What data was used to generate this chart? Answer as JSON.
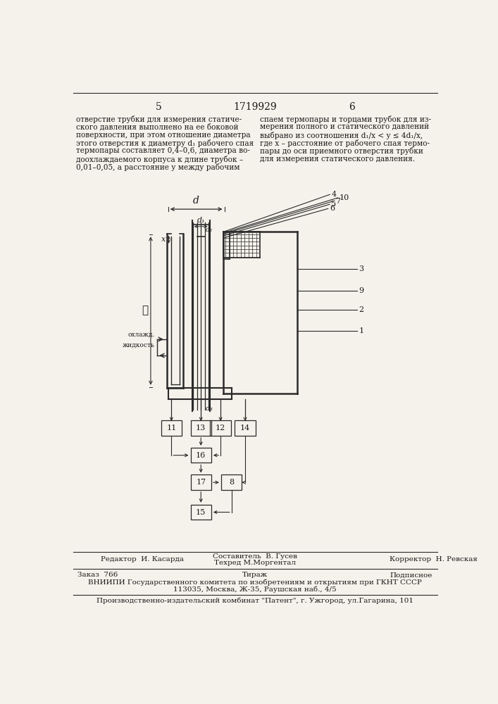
{
  "page_number_left": "5",
  "patent_number": "1719929",
  "page_number_right": "6",
  "text_left_lines": [
    "отверстие трубки для измерения статиче-",
    "ского давления выполнено на ее боковой",
    "поверхности, при этом отношение диаметра",
    "этого отверстия к диаметру d₁ рабочего спая",
    "термопары составляет 0,4–0,6, диаметра во-",
    "доохлаждаемого корпуса к длине трубок –",
    "0,01–0,05, а расстояние у между рабочим"
  ],
  "text_right_lines": [
    "спаем термопары и торцами трубок для из-",
    "мерения полного и статического давлений",
    "выбрано из соотношения d₁/x < y ≤ 4d₁/x,",
    "где x – расстояние от рабочего спая термо-",
    "пары до оси приемного отверстия трубки",
    "для измерения статического давления."
  ],
  "footer_editor": "Редактор  И. Касарда",
  "footer_compiler": "Составитель  В. Гусев",
  "footer_techred": "Техред М.Моргентал",
  "footer_corrector": "Корректор  Н. Ревская",
  "footer_order": "Заказ  766",
  "footer_tirazh": "Тираж",
  "footer_podpisnoe": "Подписное",
  "footer_vniipи": "ВНИИПИ Государственного комитета по изобретениям и открытиям при ГКНТ СССР",
  "footer_address": "113035, Москва, Ж-35, Раушская наб., 4/5",
  "footer_patent": "Производственно-издательский комбинат \"Патент\", г. Ужгород, ул.Гагарина, 101",
  "bg_color": "#f5f2eb",
  "text_color": "#1a1a1a",
  "line_color": "#2a2a2a"
}
